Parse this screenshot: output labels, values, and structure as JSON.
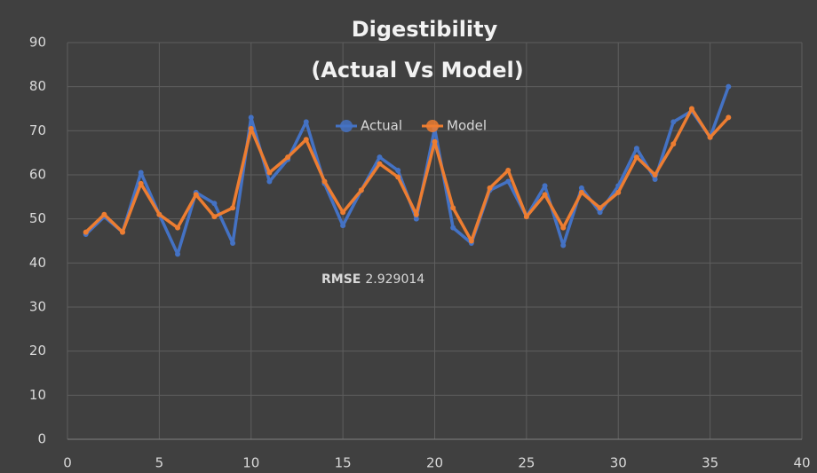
{
  "chart_data": {
    "type": "line",
    "title": [
      "Digestibility",
      "(Actual Vs Model)"
    ],
    "x": [
      1,
      2,
      3,
      4,
      5,
      6,
      7,
      8,
      9,
      10,
      11,
      12,
      13,
      14,
      15,
      16,
      17,
      18,
      19,
      20,
      21,
      22,
      23,
      24,
      25,
      26,
      27,
      28,
      29,
      30,
      31,
      32,
      33,
      34,
      35,
      36
    ],
    "series": [
      {
        "name": "Actual",
        "color": "#4472c4",
        "values": [
          46.5,
          50.5,
          47,
          60.5,
          51,
          42,
          56,
          53.5,
          44.5,
          73,
          58.5,
          63.5,
          72,
          58,
          48.5,
          56.5,
          64,
          61,
          50,
          70.5,
          48,
          44.5,
          56.5,
          58.5,
          50.5,
          57.5,
          44,
          57,
          51.5,
          57.5,
          66,
          59,
          72,
          74.5,
          68.5,
          80
        ]
      },
      {
        "name": "Model",
        "color": "#ed7d31",
        "values": [
          47,
          51,
          47,
          58,
          51,
          48,
          55.5,
          50.5,
          52.5,
          70.5,
          60.5,
          64,
          68,
          58.5,
          51.5,
          56.5,
          62.5,
          59.5,
          51,
          67.5,
          52.5,
          45,
          57,
          61,
          50.5,
          55.5,
          48,
          56,
          52.5,
          56,
          64,
          60,
          67,
          75,
          68.5,
          73
        ]
      }
    ],
    "xlim": [
      0,
      40
    ],
    "xticks": [
      0,
      5,
      10,
      15,
      20,
      25,
      30,
      35,
      40
    ],
    "ylim": [
      0,
      90
    ],
    "yticks": [
      0,
      10,
      20,
      30,
      40,
      50,
      60,
      70,
      80,
      90
    ],
    "grid": true,
    "legend": "top",
    "annotation": {
      "text": "RMSE",
      "value": 2.929014
    }
  }
}
